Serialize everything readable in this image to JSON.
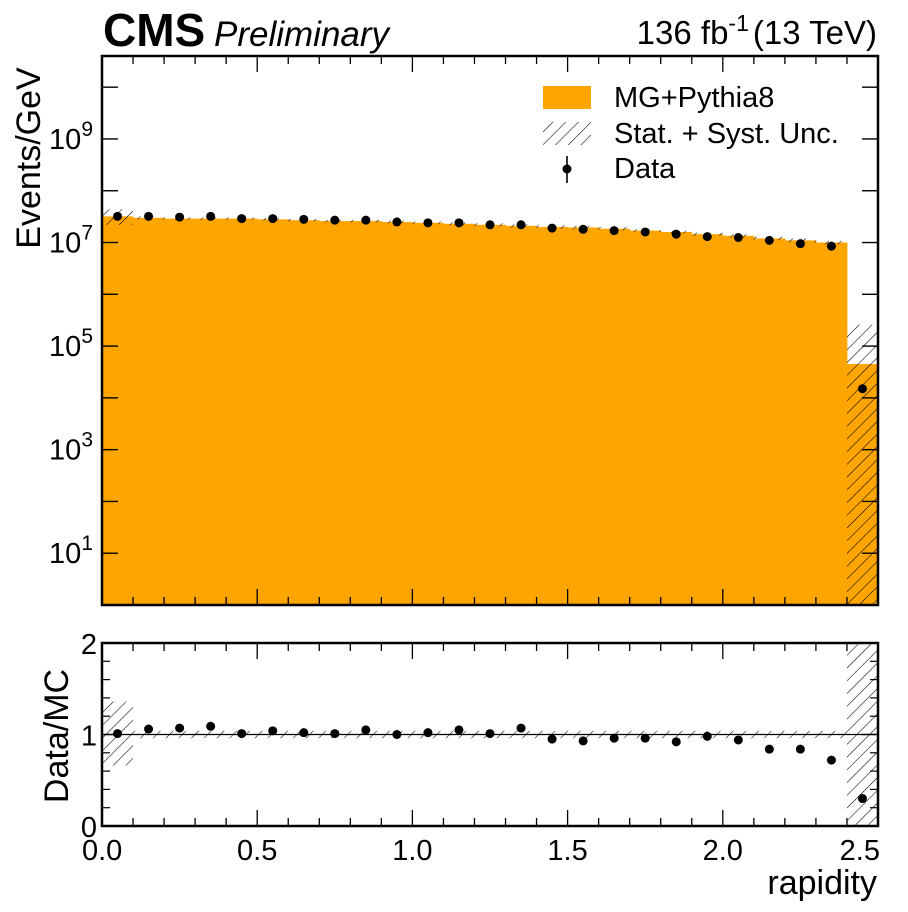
{
  "header": {
    "experiment": "CMS",
    "status": "Preliminary",
    "lumi_value": "136 fb",
    "lumi_exp": "-1",
    "energy": "(13 TeV)"
  },
  "colors": {
    "mc_fill": "#ffa500",
    "data": "#000000",
    "background": "#ffffff"
  },
  "chart_data": [
    {
      "type": "bar",
      "panel": "main",
      "ylabel": "Events/GeV",
      "yscale": "log",
      "ylim": [
        1,
        40000000000.0
      ],
      "xlim": [
        0.0,
        2.5
      ],
      "yticks": [
        {
          "exp": "1",
          "value": 10
        },
        {
          "exp": "3",
          "value": 1000
        },
        {
          "exp": "5",
          "value": 100000
        },
        {
          "exp": "7",
          "value": 10000000
        },
        {
          "exp": "9",
          "value": 1000000000
        }
      ],
      "tick_base": "10",
      "bin_edges": [
        0.0,
        0.1,
        0.2,
        0.3,
        0.4,
        0.5,
        0.6,
        0.7,
        0.8,
        0.9,
        1.0,
        1.1,
        1.2,
        1.3,
        1.4,
        1.5,
        1.6,
        1.7,
        1.8,
        1.9,
        2.0,
        2.1,
        2.2,
        2.3,
        2.4,
        2.5
      ],
      "legend_position": "top-right",
      "series": [
        {
          "name": "MG+Pythia8",
          "kind": "stacked-histogram",
          "values": [
            32000000.0,
            30000000.0,
            29000000.0,
            29000000.0,
            29000000.0,
            28000000.0,
            27000000.0,
            26000000.0,
            26000000.0,
            25000000.0,
            24000000.0,
            23000000.0,
            22000000.0,
            21000000.0,
            20000000.0,
            19500000.0,
            18500000.0,
            17000000.0,
            16000000.0,
            14500000.0,
            13500000.0,
            12000000.0,
            11000000.0,
            10000000.0,
            45000.0
          ]
        },
        {
          "name": "Stat. + Syst. Unc.",
          "kind": "uncertainty-band",
          "low": [
            22000000.0,
            28000000.0,
            27500000.0,
            27500000.0,
            27500000.0,
            26500000.0,
            25500000.0,
            24500000.0,
            24500000.0,
            23500000.0,
            22500000.0,
            21500000.0,
            20500000.0,
            19500000.0,
            18500000.0,
            18000000.0,
            17000000.0,
            16000000.0,
            15000000.0,
            13500000.0,
            12500000.0,
            11000000.0,
            10000000.0,
            9200000.0,
            1
          ],
          "high": [
            44000000.0,
            32000000.0,
            30500000.0,
            30500000.0,
            30500000.0,
            29500000.0,
            28500000.0,
            27500000.0,
            27500000.0,
            26500000.0,
            25500000.0,
            24500000.0,
            23500000.0,
            22500000.0,
            21500000.0,
            21000000.0,
            20000000.0,
            18000000.0,
            17000000.0,
            15500000.0,
            14500000.0,
            13000000.0,
            12000000.0,
            10800000.0,
            260000.0
          ]
        },
        {
          "name": "Data",
          "kind": "points",
          "values": [
            32000000.0,
            32000000.0,
            31000000.0,
            32000000.0,
            29000000.0,
            29000000.0,
            28000000.0,
            27000000.0,
            27000000.0,
            25000000.0,
            24000000.0,
            24000000.0,
            22000000.0,
            22000000.0,
            19000000.0,
            18000000.0,
            17000000.0,
            16000000.0,
            14500000.0,
            13000000.0,
            12500000.0,
            11000000.0,
            9500000.0,
            8500000.0,
            15000.0
          ]
        }
      ]
    },
    {
      "type": "scatter",
      "panel": "ratio",
      "xlabel": "rapidity",
      "ylabel": "Data/MC",
      "ylim": [
        0,
        2
      ],
      "xlim": [
        0.0,
        2.5
      ],
      "yticks": [
        0,
        1,
        2
      ],
      "xticks": [
        "0.0",
        "0.5",
        "1.0",
        "1.5",
        "2.0",
        "2.5"
      ],
      "x": [
        0.05,
        0.15,
        0.25,
        0.35,
        0.45,
        0.55,
        0.65,
        0.75,
        0.85,
        0.95,
        1.05,
        1.15,
        1.25,
        1.35,
        1.45,
        1.55,
        1.65,
        1.75,
        1.85,
        1.95,
        2.05,
        2.15,
        2.25,
        2.35,
        2.45
      ],
      "values": [
        1.01,
        1.06,
        1.07,
        1.09,
        1.01,
        1.04,
        1.02,
        1.01,
        1.05,
        1.0,
        1.02,
        1.05,
        1.01,
        1.07,
        0.95,
        0.93,
        0.96,
        0.96,
        0.92,
        0.98,
        0.94,
        0.84,
        0.84,
        0.72,
        0.3
      ],
      "band_low": [
        0.66,
        0.96,
        0.96,
        0.96,
        0.96,
        0.96,
        0.96,
        0.96,
        0.96,
        0.96,
        0.96,
        0.96,
        0.96,
        0.96,
        0.96,
        0.96,
        0.96,
        0.96,
        0.96,
        0.96,
        0.96,
        0.96,
        0.96,
        0.96,
        0.0
      ],
      "band_high": [
        1.36,
        1.04,
        1.04,
        1.04,
        1.04,
        1.04,
        1.04,
        1.04,
        1.04,
        1.04,
        1.04,
        1.04,
        1.04,
        1.04,
        1.04,
        1.04,
        1.04,
        1.04,
        1.04,
        1.04,
        1.04,
        1.04,
        1.04,
        1.04,
        2.0
      ]
    }
  ]
}
